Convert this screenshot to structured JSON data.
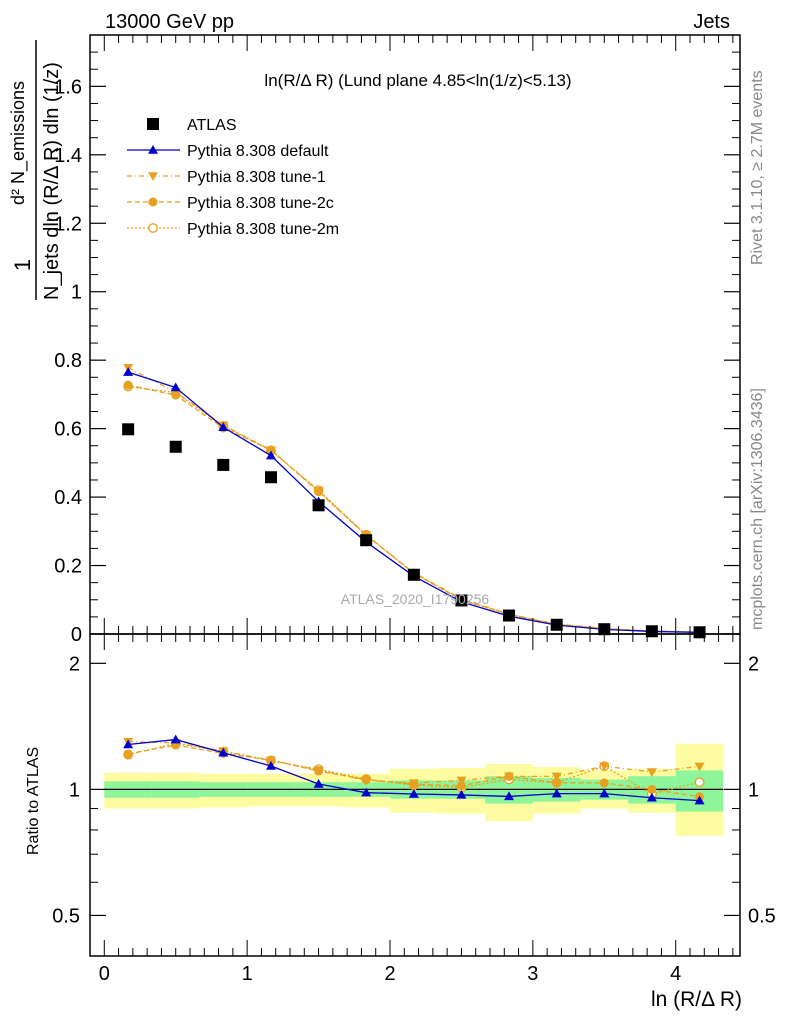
{
  "header": {
    "left": "13000 GeV pp",
    "right": "Jets",
    "side_top": "Rivet 3.1.10, ≥ 2.7M events",
    "side_bottom": "mcplots.cern.ch [arXiv:1306.3436]",
    "watermark": "ATLAS_2020_I1790256"
  },
  "colors": {
    "atlas": "#000000",
    "default": "#0000cc",
    "tunes": "#e8a020",
    "band_inner": "#8ef59a",
    "band_outer": "#fdfca0"
  },
  "chart_data": [
    {
      "type": "line",
      "title": "ln(R/Δ R) (Lund plane 4.85<ln(1/z)<5.13)",
      "ylabel_top": "1",
      "ylabel_bottom": "N_jets dln (R/Δ R) dln (1/z)",
      "ylabel_num": "d² N_emissions",
      "xlim": [
        -0.1,
        4.45
      ],
      "ylim": [
        0,
        1.75
      ],
      "yticks": [
        0,
        0.2,
        0.4,
        0.6,
        0.8,
        1,
        1.2,
        1.4,
        1.6
      ],
      "ytick_labels": [
        "0",
        "0.2",
        "0.4",
        "0.6",
        "0.8",
        "1",
        "1.2",
        "1.4",
        "1.6"
      ],
      "legend_position": "top-left",
      "x": [
        0.167,
        0.5,
        0.833,
        1.167,
        1.5,
        1.833,
        2.167,
        2.5,
        2.833,
        3.167,
        3.5,
        3.833,
        4.167
      ],
      "series": [
        {
          "name": "ATLAS",
          "style": "square",
          "values": [
            0.598,
            0.547,
            0.494,
            0.458,
            0.376,
            0.274,
            0.173,
            0.098,
            0.054,
            0.027,
            0.014,
            0.008,
            0.005
          ]
        },
        {
          "name": "Pythia 8.308 default",
          "style": "triangle-up",
          "values": [
            0.765,
            0.72,
            0.604,
            0.521,
            0.387,
            0.269,
            0.169,
            0.094,
            0.052,
            0.026,
            0.0135,
            0.0075,
            0.0048
          ]
        },
        {
          "name": "Pythia 8.308 tune-1",
          "style": "triangle-down",
          "values": [
            0.778,
            0.707,
            0.61,
            0.537,
            0.418,
            0.288,
            0.179,
            0.103,
            0.058,
            0.029,
            0.0159,
            0.0088,
            0.0057
          ]
        },
        {
          "name": "Pythia 8.308 tune-2c",
          "style": "circle",
          "values": [
            0.727,
            0.698,
            0.602,
            0.538,
            0.416,
            0.289,
            0.178,
            0.1,
            0.058,
            0.028,
            0.0145,
            0.008,
            0.0048
          ]
        },
        {
          "name": "Pythia 8.308 tune-2m",
          "style": "open-circle",
          "values": [
            0.723,
            0.705,
            0.608,
            0.536,
            0.42,
            0.29,
            0.177,
            0.099,
            0.057,
            0.028,
            0.0159,
            0.0078,
            0.0052
          ]
        }
      ]
    },
    {
      "type": "line",
      "xlabel": "ln (R/Δ R)",
      "ylabel": "Ratio to ATLAS",
      "xlim": [
        -0.1,
        4.45
      ],
      "xticks": [
        0,
        1,
        2,
        3,
        4
      ],
      "xtick_labels": [
        "0",
        "1",
        "2",
        "3",
        "4"
      ],
      "ylim": [
        0.4,
        2.35
      ],
      "log_y": true,
      "yticks": [
        0.5,
        1,
        2
      ],
      "ytick_labels": [
        "0.5",
        "1",
        "2"
      ],
      "x": [
        0.167,
        0.5,
        0.833,
        1.167,
        1.5,
        1.833,
        2.167,
        2.5,
        2.833,
        3.167,
        3.5,
        3.833,
        4.167
      ],
      "x_bins": [
        0,
        0.333,
        0.667,
        1.0,
        1.333,
        1.667,
        2.0,
        2.333,
        2.667,
        3.0,
        3.333,
        3.667,
        4.0,
        4.333
      ],
      "band_inner": [
        [
          0.955,
          1.045
        ],
        [
          0.955,
          1.045
        ],
        [
          0.96,
          1.04
        ],
        [
          0.96,
          1.04
        ],
        [
          0.96,
          1.04
        ],
        [
          0.96,
          1.04
        ],
        [
          0.95,
          1.05
        ],
        [
          0.95,
          1.05
        ],
        [
          0.925,
          1.075
        ],
        [
          0.935,
          1.065
        ],
        [
          0.945,
          1.055
        ],
        [
          0.925,
          1.075
        ],
        [
          0.885,
          1.11
        ]
      ],
      "band_outer": [
        [
          0.9,
          1.095
        ],
        [
          0.9,
          1.095
        ],
        [
          0.905,
          1.09
        ],
        [
          0.91,
          1.09
        ],
        [
          0.91,
          1.09
        ],
        [
          0.905,
          1.09
        ],
        [
          0.88,
          1.12
        ],
        [
          0.875,
          1.125
        ],
        [
          0.84,
          1.15
        ],
        [
          0.875,
          1.13
        ],
        [
          0.9,
          1.11
        ],
        [
          0.88,
          1.12
        ],
        [
          0.775,
          1.285
        ]
      ],
      "series": [
        {
          "name": "Pythia 8.308 default",
          "values": [
            1.28,
            1.315,
            1.223,
            1.137,
            1.03,
            0.982,
            0.975,
            0.97,
            0.962,
            0.977,
            0.977,
            0.955,
            0.94
          ]
        },
        {
          "name": "Pythia 8.308 tune-1",
          "values": [
            1.3,
            1.292,
            1.235,
            1.173,
            1.112,
            1.051,
            1.035,
            1.051,
            1.074,
            1.074,
            1.136,
            1.1,
            1.135
          ]
        },
        {
          "name": "Pythia 8.308 tune-2c",
          "values": [
            1.215,
            1.276,
            1.219,
            1.175,
            1.106,
            1.055,
            1.029,
            1.02,
            1.074,
            1.037,
            1.036,
            1.0,
            0.96
          ]
        },
        {
          "name": "Pythia 8.308 tune-2m",
          "values": [
            1.21,
            1.289,
            1.231,
            1.17,
            1.117,
            1.058,
            1.023,
            1.01,
            1.056,
            1.037,
            1.136,
            0.975,
            1.04
          ]
        }
      ]
    }
  ]
}
